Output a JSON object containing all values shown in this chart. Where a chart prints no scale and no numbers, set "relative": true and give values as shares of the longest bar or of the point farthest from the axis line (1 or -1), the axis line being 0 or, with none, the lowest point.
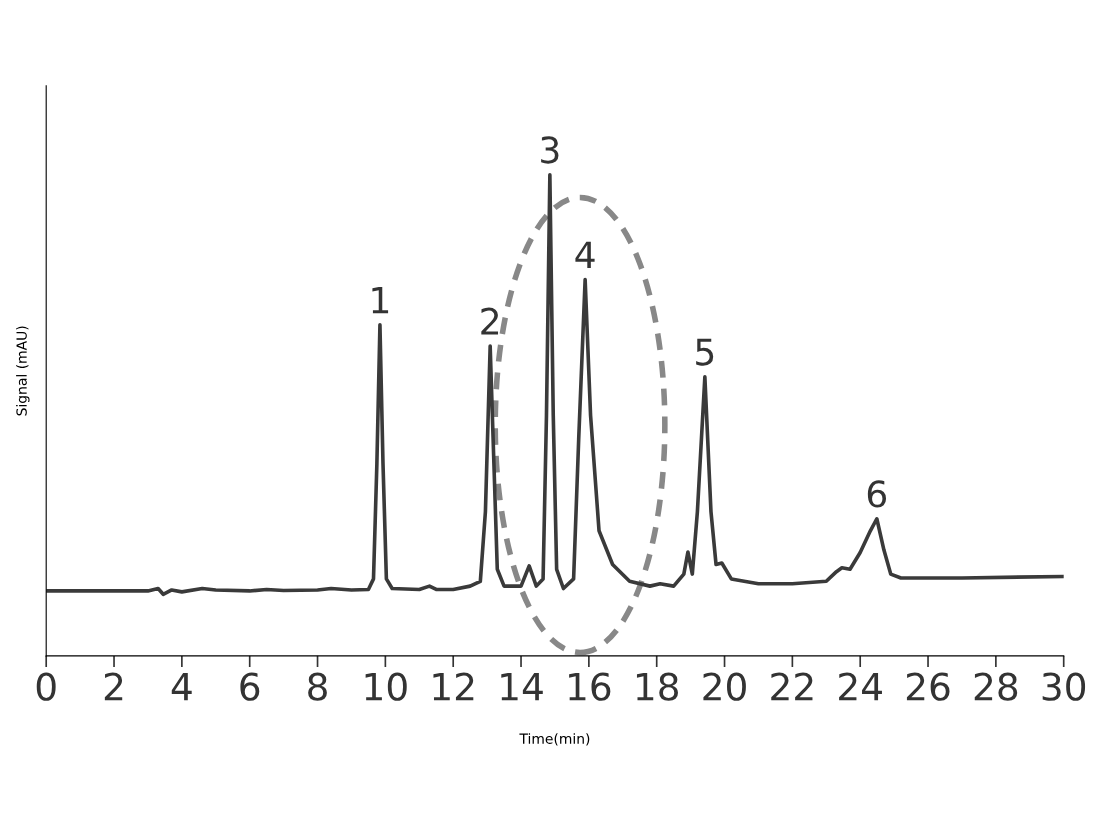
{
  "chart_data": {
    "type": "line",
    "relative": true,
    "xlabel": "Time(min)",
    "ylabel": "Signal (mAU)",
    "xlim": [
      0,
      30
    ],
    "xticks": [
      0,
      2,
      4,
      6,
      8,
      10,
      12,
      14,
      16,
      18,
      20,
      22,
      24,
      26,
      28,
      30
    ],
    "tick_labels": "x",
    "grid": false,
    "legend": false,
    "marker": "none",
    "line_style": "solid",
    "series": [
      {
        "color": "#3a3a3a",
        "x": [
          0,
          3.0,
          3.3,
          3.45,
          3.7,
          4.0,
          4.6,
          5.0,
          6.0,
          6.5,
          7.0,
          8.0,
          8.4,
          9.0,
          9.5,
          9.65,
          9.75,
          9.84,
          9.93,
          10.03,
          10.2,
          11.0,
          11.3,
          11.5,
          12.0,
          12.5,
          12.8,
          12.95,
          13.09,
          13.2,
          13.3,
          13.5,
          14.0,
          14.24,
          14.45,
          14.65,
          14.75,
          14.85,
          14.95,
          15.05,
          15.25,
          15.55,
          15.7,
          15.89,
          16.05,
          16.3,
          16.7,
          17.2,
          17.8,
          18.1,
          18.5,
          18.8,
          18.92,
          19.05,
          19.2,
          19.42,
          19.6,
          19.75,
          19.92,
          20.2,
          21.0,
          22.0,
          23.0,
          23.3,
          23.46,
          23.7,
          24.0,
          24.3,
          24.49,
          24.7,
          24.9,
          25.2,
          27.0,
          30.0
        ],
        "values": [
          0.135,
          0.135,
          0.14,
          0.128,
          0.137,
          0.133,
          0.14,
          0.137,
          0.135,
          0.138,
          0.136,
          0.137,
          0.14,
          0.137,
          0.138,
          0.16,
          0.4,
          0.688,
          0.4,
          0.16,
          0.14,
          0.138,
          0.145,
          0.138,
          0.138,
          0.145,
          0.155,
          0.3,
          0.644,
          0.4,
          0.18,
          0.145,
          0.145,
          0.187,
          0.145,
          0.16,
          0.5,
          1.0,
          0.5,
          0.18,
          0.14,
          0.16,
          0.45,
          0.782,
          0.5,
          0.26,
          0.19,
          0.155,
          0.145,
          0.15,
          0.145,
          0.17,
          0.216,
          0.17,
          0.3,
          0.58,
          0.3,
          0.19,
          0.193,
          0.16,
          0.15,
          0.15,
          0.155,
          0.175,
          0.183,
          0.18,
          0.215,
          0.26,
          0.285,
          0.22,
          0.17,
          0.162,
          0.162,
          0.165
        ]
      }
    ],
    "annotations": [
      {
        "text": "1",
        "x": 9.84,
        "y": 0.688
      },
      {
        "text": "2",
        "x": 13.09,
        "y": 0.644
      },
      {
        "text": "3",
        "x": 14.85,
        "y": 1.0
      },
      {
        "text": "4",
        "x": 15.89,
        "y": 0.782
      },
      {
        "text": "5",
        "x": 19.42,
        "y": 0.58
      },
      {
        "text": "6",
        "x": 24.49,
        "y": 0.285
      }
    ]
  }
}
